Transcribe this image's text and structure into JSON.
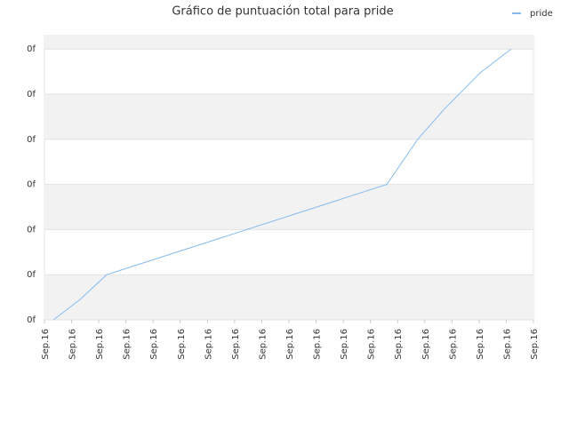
{
  "chart_data": {
    "type": "line",
    "title": "Gráfico de puntuación total para pride",
    "x": [
      0.33,
      1.31,
      2.29,
      12.6,
      13.74,
      14.72,
      16.03,
      17.18
    ],
    "series": [
      {
        "name": "pride",
        "color": "#88bbee",
        "values": [
          0,
          0.45,
          1.0,
          3.0,
          4.0,
          4.67,
          5.47,
          6.0
        ]
      }
    ],
    "xlim": [
      0,
      18
    ],
    "xticks": [
      {
        "value": 0,
        "label": "Sep.16"
      },
      {
        "value": 1,
        "label": "Sep.16"
      },
      {
        "value": 2,
        "label": "Sep.16"
      },
      {
        "value": 3,
        "label": "Sep.16"
      },
      {
        "value": 4,
        "label": "Sep.16"
      },
      {
        "value": 5,
        "label": "Sep.16"
      },
      {
        "value": 6,
        "label": "Sep.16"
      },
      {
        "value": 7,
        "label": "Sep.16"
      },
      {
        "value": 8,
        "label": "Sep.16"
      },
      {
        "value": 9,
        "label": "Sep.16"
      },
      {
        "value": 10,
        "label": "Sep.16"
      },
      {
        "value": 11,
        "label": "Sep.16"
      },
      {
        "value": 12,
        "label": "Sep.16"
      },
      {
        "value": 13,
        "label": "Sep.16"
      },
      {
        "value": 14,
        "label": "Sep.16"
      },
      {
        "value": 15,
        "label": "Sep.16"
      },
      {
        "value": 16,
        "label": "Sep.16"
      },
      {
        "value": 17,
        "label": "Sep.16"
      },
      {
        "value": 18,
        "label": "Sep.16"
      }
    ],
    "ylim": [
      0,
      6.3
    ],
    "yticks": [
      {
        "value": 0,
        "label": "0f"
      },
      {
        "value": 1,
        "label": "0f"
      },
      {
        "value": 2,
        "label": "0f"
      },
      {
        "value": 3,
        "label": "0f"
      },
      {
        "value": 4,
        "label": "0f"
      },
      {
        "value": 5,
        "label": "0f"
      },
      {
        "value": 6,
        "label": "0f"
      }
    ],
    "grid": true,
    "legend": "top-right"
  }
}
